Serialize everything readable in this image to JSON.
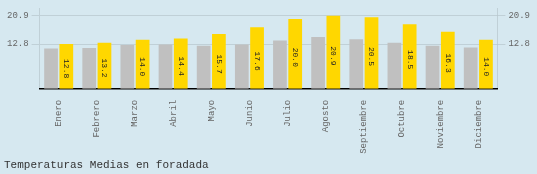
{
  "chart_data": {
    "type": "bar",
    "title": "Temperaturas Medias en foradada",
    "categories": [
      "Enero",
      "Febrero",
      "Marzo",
      "Abril",
      "Mayo",
      "Junio",
      "Julio",
      "Agosto",
      "Septiembre",
      "Octubre",
      "Noviembre",
      "Diciembre"
    ],
    "series": [
      {
        "color": "#C0C0C0",
        "values": [
          11.5,
          11.7,
          12.5,
          12.7,
          12.3,
          12.7,
          13.8,
          14.8,
          14.2,
          13.2,
          12.3,
          11.8
        ]
      },
      {
        "color": "#FFD700",
        "values": [
          12.8,
          13.2,
          14.0,
          14.4,
          15.7,
          17.6,
          20.0,
          20.9,
          20.5,
          18.5,
          16.3,
          14.0
        ],
        "value_labels": [
          "12.8",
          "13.2",
          "14.0",
          "14.4",
          "15.7",
          "17.6",
          "20.0",
          "20.9",
          "20.5",
          "18.5",
          "16.3",
          "14.0"
        ],
        "data_labels": true
      }
    ],
    "ylim": [
      0,
      23.0
    ],
    "yticks": [
      12.8,
      20.9
    ],
    "y2lim": [
      0,
      23.0
    ],
    "y2ticks": [
      12.8,
      20.9
    ],
    "grid": true
  }
}
